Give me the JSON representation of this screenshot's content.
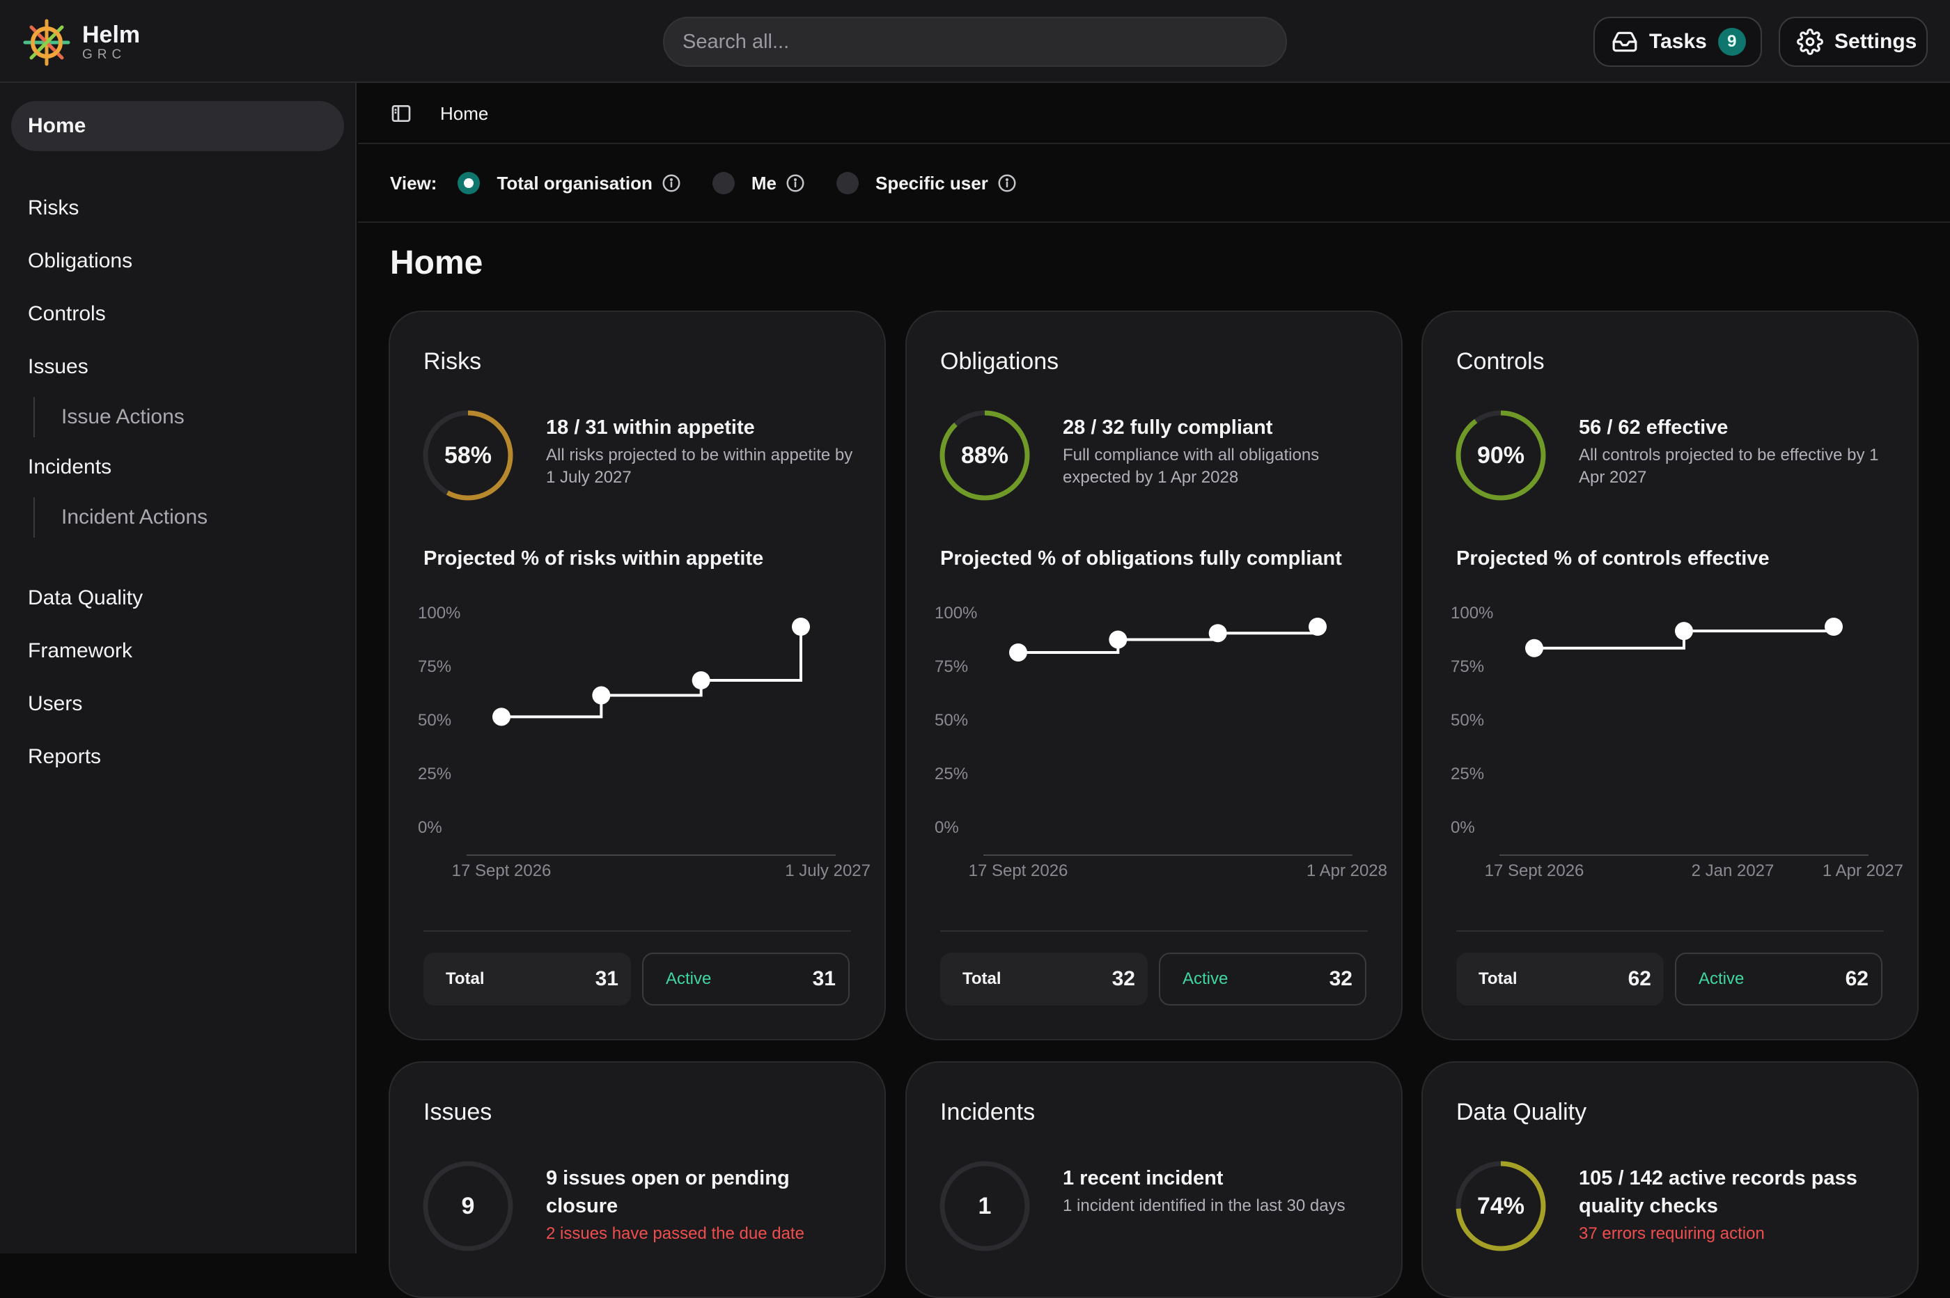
{
  "app": {
    "name": "Helm",
    "sub": "GRC"
  },
  "search": {
    "placeholder": "Search all..."
  },
  "topbar": {
    "tasks_label": "Tasks",
    "tasks_count": "9",
    "settings_label": "Settings"
  },
  "sidebar": {
    "home": "Home",
    "items": [
      "Risks",
      "Obligations",
      "Controls",
      "Issues",
      "Issue Actions",
      "Incidents",
      "Incident Actions",
      "Data Quality",
      "Framework",
      "Users",
      "Reports"
    ]
  },
  "breadcrumb": {
    "current": "Home"
  },
  "view": {
    "label": "View:",
    "options": [
      "Total organisation",
      "Me",
      "Specific user"
    ],
    "selected": "Total organisation"
  },
  "page_title": "Home",
  "colors": {
    "accent": "#0f766e",
    "risk_ring": "#b8882c",
    "good_ring": "#6f9a28",
    "dq_ring": "#a5a026",
    "alert": "#f04e4e",
    "active_green": "#3fd6a0"
  },
  "cards": {
    "risks": {
      "title": "Risks",
      "percent": "58%",
      "ring_value": 0.58,
      "headline": "18 / 31 within appetite",
      "sub": "All risks projected to be within appetite by 1 July 2027",
      "chart_title": "Projected % of risks within appetite",
      "total_label": "Total",
      "total": "31",
      "active_label": "Active",
      "active": "31"
    },
    "obligations": {
      "title": "Obligations",
      "percent": "88%",
      "ring_value": 0.88,
      "headline": "28 / 32 fully compliant",
      "sub": "Full compliance with all obligations expected by 1 Apr 2028",
      "chart_title": "Projected % of obligations fully compliant",
      "total_label": "Total",
      "total": "32",
      "active_label": "Active",
      "active": "32"
    },
    "controls": {
      "title": "Controls",
      "percent": "90%",
      "ring_value": 0.9,
      "headline": "56 / 62 effective",
      "sub": "All controls projected to be effective by 1 Apr 2027",
      "chart_title": "Projected % of controls effective",
      "total_label": "Total",
      "total": "62",
      "active_label": "Active",
      "active": "62"
    },
    "issues": {
      "title": "Issues",
      "count": "9",
      "headline": "9 issues open or pending closure",
      "sub": "2 issues have passed the due date"
    },
    "incidents": {
      "title": "Incidents",
      "count": "1",
      "headline": "1 recent incident",
      "sub": "1 incident identified in the last 30 days"
    },
    "data_quality": {
      "title": "Data Quality",
      "percent": "74%",
      "ring_value": 0.74,
      "headline": "105 / 142 active records pass quality checks",
      "sub": "37 errors requiring action"
    }
  },
  "chart_data": [
    {
      "type": "line",
      "step": true,
      "title": "Projected % of risks within appetite",
      "y_ticks": [
        "100%",
        "75%",
        "50%",
        "25%",
        "0%"
      ],
      "ylim": [
        0,
        100
      ],
      "x_tick_labels": [
        "17 Sept 2026",
        "1 July 2027"
      ],
      "values": [
        58,
        68,
        75,
        100
      ]
    },
    {
      "type": "line",
      "step": true,
      "title": "Projected % of obligations fully compliant",
      "y_ticks": [
        "100%",
        "75%",
        "50%",
        "25%",
        "0%"
      ],
      "ylim": [
        0,
        100
      ],
      "x_tick_labels": [
        "17 Sept 2026",
        "1 Apr 2028"
      ],
      "values": [
        88,
        94,
        97,
        100
      ]
    },
    {
      "type": "line",
      "step": true,
      "title": "Projected % of controls effective",
      "y_ticks": [
        "100%",
        "75%",
        "50%",
        "25%",
        "0%"
      ],
      "ylim": [
        0,
        100
      ],
      "x_tick_labels": [
        "17 Sept 2026",
        "2 Jan 2027",
        "1 Apr 2027"
      ],
      "values": [
        90,
        98,
        100
      ]
    }
  ]
}
